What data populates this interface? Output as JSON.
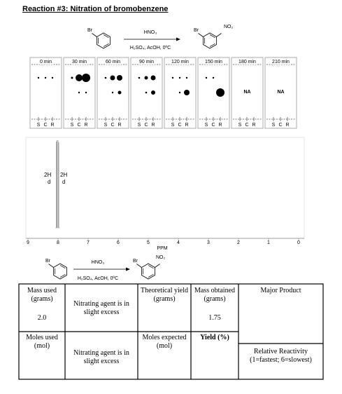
{
  "title": "Reaction #3:  Nitration of bromobenzene",
  "scheme": {
    "reactant_substituent": "Br",
    "reagent_above": "HNO₃",
    "reagent_below": "H₂SO₄, AcOH, 0ºC",
    "product_substituents": [
      "Br",
      "NO₂"
    ]
  },
  "tlc": {
    "plates": [
      {
        "time": "0 min",
        "lanes": [
          "S",
          "C",
          "R"
        ]
      },
      {
        "time": "30 min",
        "lanes": [
          "S",
          "C",
          "R"
        ]
      },
      {
        "time": "60 min",
        "lanes": [
          "S",
          "C",
          "R"
        ]
      },
      {
        "time": "90 min",
        "lanes": [
          "S",
          "C",
          "R"
        ]
      },
      {
        "time": "120 min",
        "lanes": [
          "S",
          "C",
          "R"
        ]
      },
      {
        "time": "150 min",
        "lanes": [
          "S",
          "C",
          "R"
        ]
      },
      {
        "time": "180 min",
        "lanes": [
          "S",
          "C",
          "R"
        ],
        "note": "NA"
      },
      {
        "time": "210 min",
        "lanes": [
          "S",
          "C",
          "R"
        ],
        "note": "NA"
      }
    ]
  },
  "nmr": {
    "peak_labels": [
      {
        "integration": "2H",
        "multiplicity": "d"
      },
      {
        "integration": "2H",
        "multiplicity": "d"
      }
    ],
    "xticks": [
      9,
      8,
      7,
      6,
      5,
      4,
      3,
      2,
      1,
      0
    ],
    "xlabel": "PPM"
  },
  "scheme_2": {
    "reactant_substituent": "Br",
    "reagent_above": "HNO₃",
    "reagent_below": "H₂SO₄, AcOH, 0ºC",
    "product_substituents": [
      "Br",
      "NO₂"
    ]
  },
  "table": {
    "rows": [
      [
        {
          "label": "Mass used (grams)",
          "value": "2.0"
        },
        {
          "label": "Nitrating agent is in slight excess"
        },
        {
          "label": "Theoretical yield (grams)"
        },
        {
          "label": "Mass obtained (grams)",
          "value": "1.75"
        },
        {
          "label": "Major Product"
        }
      ],
      [
        {
          "label": "Moles used (mol)"
        },
        {
          "label": "Nitrating agent is in slight excess"
        },
        {
          "label": "Moles expected (mol)"
        },
        {
          "label": "Yield (%)"
        },
        {
          "label": "Relative Reactivity (1=fastest; 6=slowest)"
        }
      ]
    ]
  }
}
